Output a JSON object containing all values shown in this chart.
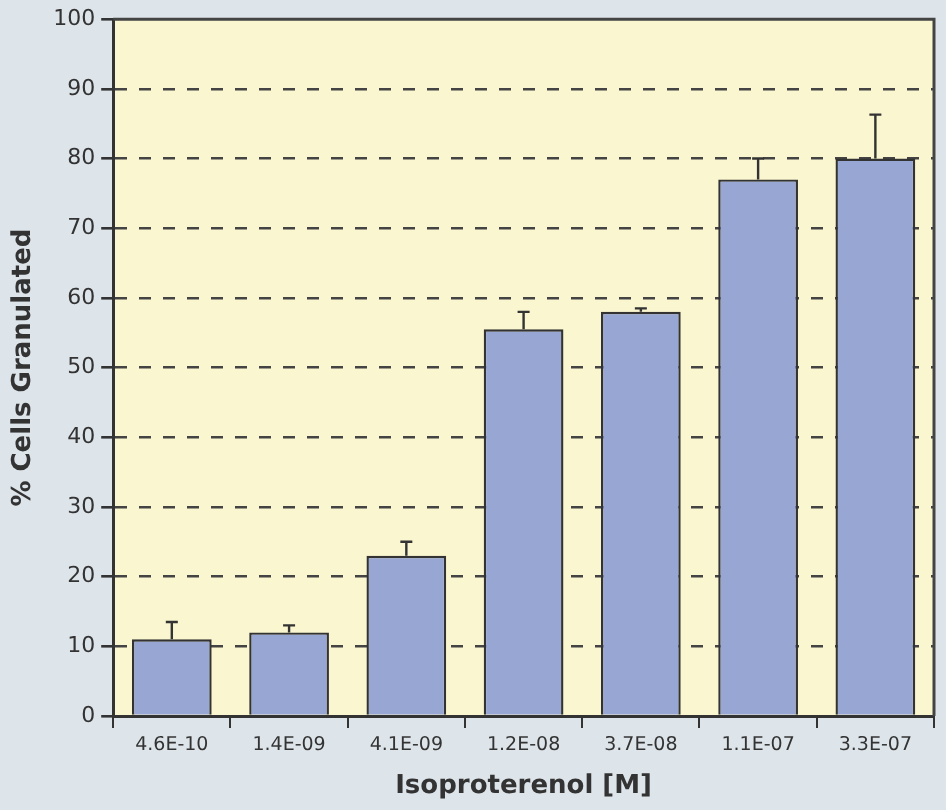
{
  "chart_data": {
    "type": "bar",
    "xlabel": "Isoproterenol [M]",
    "ylabel": "% Cells Granulated",
    "categories": [
      "4.6E-10",
      "1.4E-09",
      "4.1E-09",
      "1.2E-08",
      "3.7E-08",
      "1.1E-07",
      "3.3E-07"
    ],
    "values": [
      11,
      12,
      23,
      55.5,
      58,
      77,
      80
    ],
    "errors": [
      [
        11,
        13.5
      ],
      [
        12,
        13
      ],
      [
        23,
        25
      ],
      [
        55.5,
        58
      ],
      [
        58,
        58.5
      ],
      [
        77,
        80
      ],
      [
        80,
        86.3
      ]
    ],
    "color": "#97a6d3",
    "ylim": [
      0,
      100
    ],
    "yticks": [
      0,
      10,
      20,
      30,
      40,
      50,
      60,
      70,
      80,
      90,
      100
    ],
    "grid": "y",
    "line_style": "dashed",
    "legend": false
  }
}
